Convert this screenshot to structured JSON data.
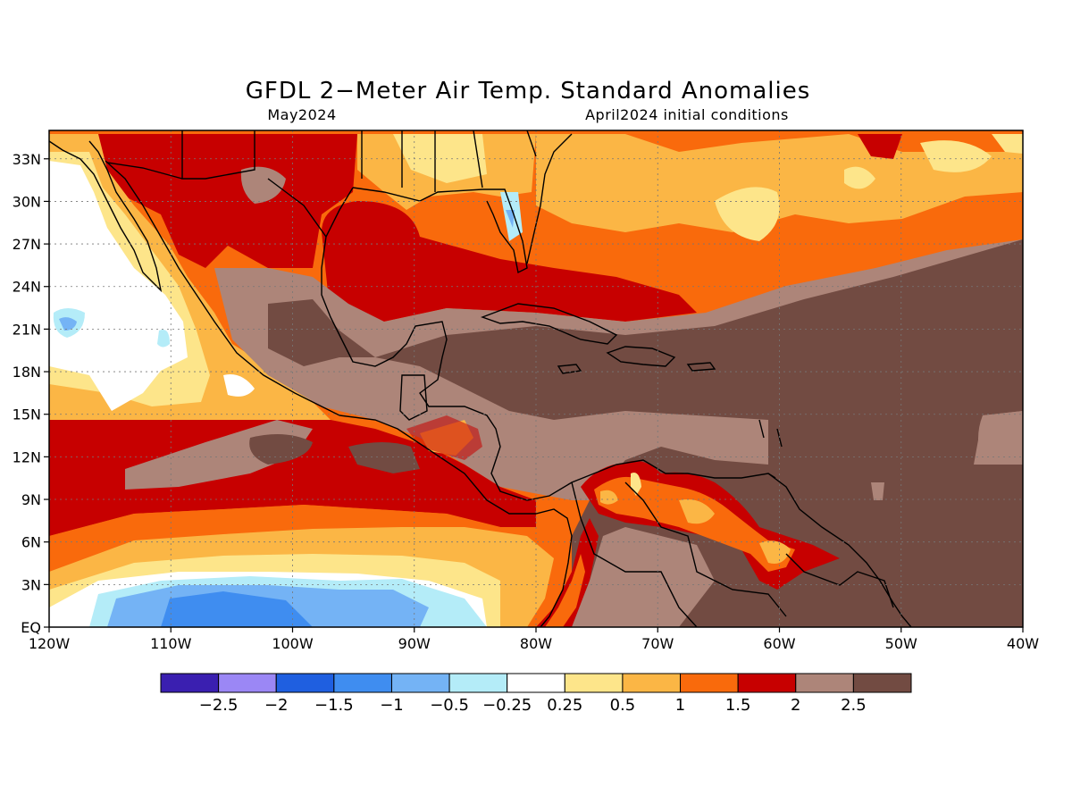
{
  "header": {
    "title": "GFDL 2−Meter Air Temp. Standard Anomalies",
    "valid_month": "May2024",
    "init": "April2024 initial conditions"
  },
  "map_data": {
    "type": "filled-contour-map",
    "variable": "2-meter air temperature standard anomaly",
    "extent": {
      "lon": [
        -120,
        -40
      ],
      "lat": [
        0,
        35
      ]
    },
    "lon_ticks": [
      {
        "value": -120,
        "label": "120W"
      },
      {
        "value": -110,
        "label": "110W"
      },
      {
        "value": -100,
        "label": "100W"
      },
      {
        "value": -90,
        "label": "90W"
      },
      {
        "value": -80,
        "label": "80W"
      },
      {
        "value": -70,
        "label": "70W"
      },
      {
        "value": -60,
        "label": "60W"
      },
      {
        "value": -50,
        "label": "50W"
      },
      {
        "value": -40,
        "label": "40W"
      }
    ],
    "lat_ticks": [
      {
        "value": 0,
        "label": "EQ"
      },
      {
        "value": 3,
        "label": "3N"
      },
      {
        "value": 6,
        "label": "6N"
      },
      {
        "value": 9,
        "label": "9N"
      },
      {
        "value": 12,
        "label": "12N"
      },
      {
        "value": 15,
        "label": "15N"
      },
      {
        "value": 18,
        "label": "18N"
      },
      {
        "value": 21,
        "label": "21N"
      },
      {
        "value": 24,
        "label": "24N"
      },
      {
        "value": 27,
        "label": "27N"
      },
      {
        "value": 30,
        "label": "30N"
      },
      {
        "value": 33,
        "label": "33N"
      }
    ],
    "grid": true,
    "regions": [
      {
        "name": "tropical-atlantic-caribbean",
        "approx_anomaly": "> 2.5"
      },
      {
        "name": "gulf-of-mexico",
        "approx_anomaly": "1 to 2"
      },
      {
        "name": "eastern-pacific-equatorial",
        "approx_anomaly": "-1.5 to -0.25"
      },
      {
        "name": "northern-colombia-venezuela",
        "approx_anomaly": "0.5 to 2"
      }
    ]
  },
  "colorbar": {
    "colors": [
      "#3a1fb0",
      "#9b87f5",
      "#1f5fe0",
      "#3f8df0",
      "#74b3f5",
      "#b4ecf8",
      "#ffffff",
      "#fde58a",
      "#fbb645",
      "#f96a0c",
      "#c70000",
      "#ad8579",
      "#724b42"
    ],
    "labels": [
      "−2.5",
      "−2",
      "−1.5",
      "−1",
      "−0.5",
      "−0.25",
      "0.25",
      "0.5",
      "1",
      "1.5",
      "2",
      "2.5"
    ]
  }
}
